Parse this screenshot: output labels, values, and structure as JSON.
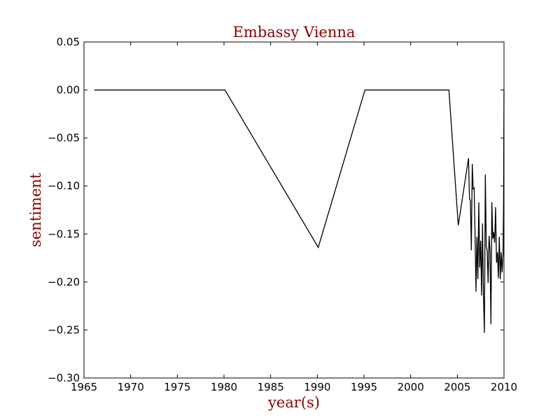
{
  "chart_data": {
    "type": "line",
    "title": "Embassy Vienna",
    "xlabel": "year(s)",
    "ylabel": "sentiment",
    "xlim": [
      1965,
      2010
    ],
    "ylim": [
      -0.3,
      0.05
    ],
    "grid": false,
    "legend": "none",
    "x_ticks": [
      "1965",
      "1970",
      "1975",
      "1980",
      "1985",
      "1990",
      "1995",
      "2000",
      "2005",
      "2010"
    ],
    "y_ticks": [
      "0.05",
      "0.00",
      "−0.05",
      "−0.10",
      "−0.15",
      "−0.20",
      "−0.25",
      "−0.30"
    ],
    "line_color": "#000000",
    "title_color": "#8b0000",
    "series": [
      {
        "x": [
          1966.1,
          1980.1,
          1990.1,
          1995.1,
          2004.1,
          2005.1,
          2006.2,
          2006.3,
          2006.4,
          2006.5,
          2006.6,
          2006.7,
          2006.8,
          2006.9,
          2007.0,
          2007.1,
          2007.2,
          2007.3,
          2007.4,
          2007.5,
          2007.6,
          2007.7,
          2007.8,
          2007.9,
          2008.0,
          2008.1,
          2008.2,
          2008.3,
          2008.4,
          2008.5,
          2008.6,
          2008.7,
          2008.8,
          2008.9,
          2009.0,
          2009.1,
          2009.2,
          2009.3,
          2009.4,
          2009.5,
          2009.6,
          2009.7,
          2009.8,
          2009.9,
          2009.95,
          2010.0
        ],
        "y": [
          0.0,
          0.0,
          -0.164,
          0.0,
          0.0,
          -0.141,
          -0.071,
          -0.113,
          -0.115,
          -0.167,
          -0.077,
          -0.103,
          -0.102,
          -0.15,
          -0.21,
          -0.153,
          -0.197,
          -0.117,
          -0.185,
          -0.157,
          -0.214,
          -0.139,
          -0.215,
          -0.253,
          -0.088,
          -0.163,
          -0.167,
          -0.201,
          -0.152,
          -0.167,
          -0.244,
          -0.117,
          -0.155,
          -0.148,
          -0.159,
          -0.122,
          -0.18,
          -0.169,
          -0.196,
          -0.153,
          -0.197,
          -0.169,
          -0.19,
          -0.17,
          -0.12,
          0.0
        ]
      }
    ]
  }
}
